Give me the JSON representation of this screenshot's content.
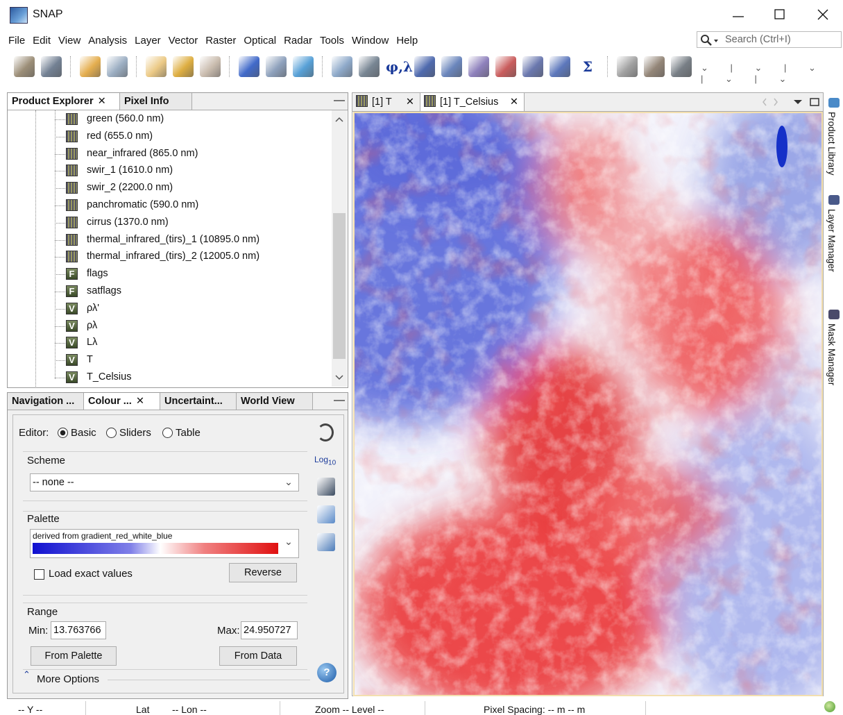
{
  "window": {
    "title": "SNAP"
  },
  "menu": [
    "File",
    "Edit",
    "View",
    "Analysis",
    "Layer",
    "Vector",
    "Raster",
    "Optical",
    "Radar",
    "Tools",
    "Window",
    "Help"
  ],
  "search": {
    "placeholder": "Search (Ctrl+I)"
  },
  "toolbar": {
    "geo": "φ,λ",
    "sum": "Σ"
  },
  "explorer": {
    "tabs": [
      "Product Explorer",
      "Pixel Info"
    ],
    "nodes": [
      {
        "label": "green (560.0 nm)"
      },
      {
        "label": "red (655.0 nm)"
      },
      {
        "label": "near_infrared (865.0 nm)"
      },
      {
        "label": "swir_1 (1610.0 nm)"
      },
      {
        "label": "swir_2 (2200.0 nm)"
      },
      {
        "label": "panchromatic (590.0 nm)"
      },
      {
        "label": "cirrus (1370.0 nm)"
      },
      {
        "label": "thermal_infrared_(tirs)_1 (10895.0 nm)"
      },
      {
        "label": "thermal_infrared_(tirs)_2 (12005.0 nm)"
      },
      {
        "icon": "F",
        "label": "flags"
      },
      {
        "icon": "F",
        "label": "satflags"
      },
      {
        "icon": "V",
        "label": "ρλ'"
      },
      {
        "icon": "V",
        "label": "ρλ"
      },
      {
        "icon": "V",
        "label": "Lλ"
      },
      {
        "icon": "V",
        "label": "T"
      },
      {
        "icon": "V",
        "label": "T_Celsius"
      }
    ]
  },
  "tool_window": {
    "tabs": [
      "Navigation ...",
      "Colour ...",
      "Uncertaint...",
      "World View"
    ],
    "editor": {
      "label": "Editor:",
      "options": [
        "Basic",
        "Sliders",
        "Table"
      ]
    },
    "log": {
      "base": "Log",
      "sub": "10"
    },
    "scheme": {
      "label": "Scheme",
      "value": "-- none --"
    },
    "palette": {
      "label": "Palette",
      "value": "derived from gradient_red_white_blue"
    },
    "load_exact": "Load exact values",
    "reverse": "Reverse",
    "range": {
      "label": "Range",
      "min_label": "Min:",
      "min": 13.763766,
      "max_label": "Max:",
      "max": 24.950727
    },
    "from_palette": "From Palette",
    "from_data": "From Data",
    "more_options": "More Options"
  },
  "image_view": {
    "tabs": [
      "[1] T",
      "[1] T_Celsius"
    ]
  },
  "side_panels": [
    "Product Library",
    "Layer Manager",
    "Mask Manager"
  ],
  "status_bar": [
    "-- Y --",
    "Lat",
    "-- Lon --",
    "Zoom -- Level --",
    "Pixel Spacing: -- m -- m"
  ]
}
